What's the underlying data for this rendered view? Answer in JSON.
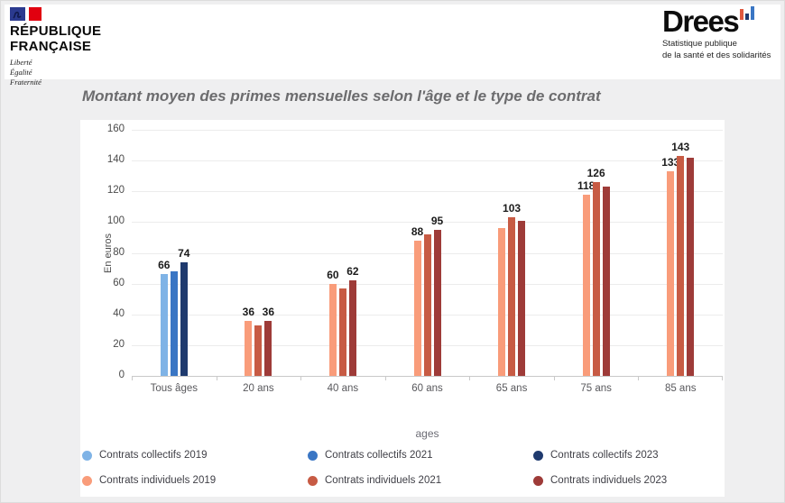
{
  "header": {
    "marianne": {
      "line1": "RÉPUBLIQUE",
      "line2": "FRANÇAISE",
      "motto1": "Liberté",
      "motto2": "Égalité",
      "motto3": "Fraternité",
      "flag_colors": {
        "blue": "#2b3a8f",
        "red": "#e1000f"
      }
    },
    "drees": {
      "wordmark": "Drees",
      "tagline1": "Statistique publique",
      "tagline2": "de la santé et des solidarités",
      "icon_colors": [
        "#e0593f",
        "#1f3a6e",
        "#3a76c4"
      ]
    }
  },
  "chart_data": {
    "type": "bar",
    "title": "Montant moyen des primes mensuelles selon l'âge et le type de contrat",
    "xlabel": "ages",
    "ylabel": "En euros",
    "ylim": [
      0,
      160
    ],
    "yticks": [
      0,
      20,
      40,
      60,
      80,
      100,
      120,
      140,
      160
    ],
    "grid": true,
    "legend_position": "bottom",
    "categories": [
      "Tous âges",
      "20 ans",
      "40 ans",
      "60 ans",
      "65 ans",
      "75 ans",
      "85 ans"
    ],
    "series": [
      {
        "name": "Contrats collectifs 2019",
        "color": "#7fb3e6",
        "values": [
          66,
          null,
          null,
          null,
          null,
          null,
          null
        ],
        "labels": [
          "66",
          null,
          null,
          null,
          null,
          null,
          null
        ]
      },
      {
        "name": "Contrats collectifs 2021",
        "color": "#3a76c4",
        "values": [
          68,
          null,
          null,
          null,
          null,
          null,
          null
        ],
        "labels": [
          null,
          null,
          null,
          null,
          null,
          null,
          null
        ]
      },
      {
        "name": "Contrats collectifs 2023",
        "color": "#1f3a6e",
        "values": [
          74,
          null,
          null,
          null,
          null,
          null,
          null
        ],
        "labels": [
          "74",
          null,
          null,
          null,
          null,
          null,
          null
        ]
      },
      {
        "name": "Contrats individuels 2019",
        "color": "#f99c7a",
        "values": [
          null,
          36,
          60,
          88,
          96,
          118,
          133
        ],
        "labels": [
          null,
          "36",
          "60",
          "88",
          null,
          "118",
          "133"
        ]
      },
      {
        "name": "Contrats individuels 2021",
        "color": "#c75b44",
        "values": [
          null,
          33,
          57,
          92,
          103,
          126,
          143
        ],
        "labels": [
          null,
          null,
          null,
          null,
          "103",
          "126",
          "143"
        ]
      },
      {
        "name": "Contrats individuels 2023",
        "color": "#9e3b38",
        "values": [
          null,
          36,
          62,
          95,
          101,
          123,
          142
        ],
        "labels": [
          null,
          "36",
          "62",
          "95",
          null,
          null,
          null
        ]
      }
    ]
  }
}
